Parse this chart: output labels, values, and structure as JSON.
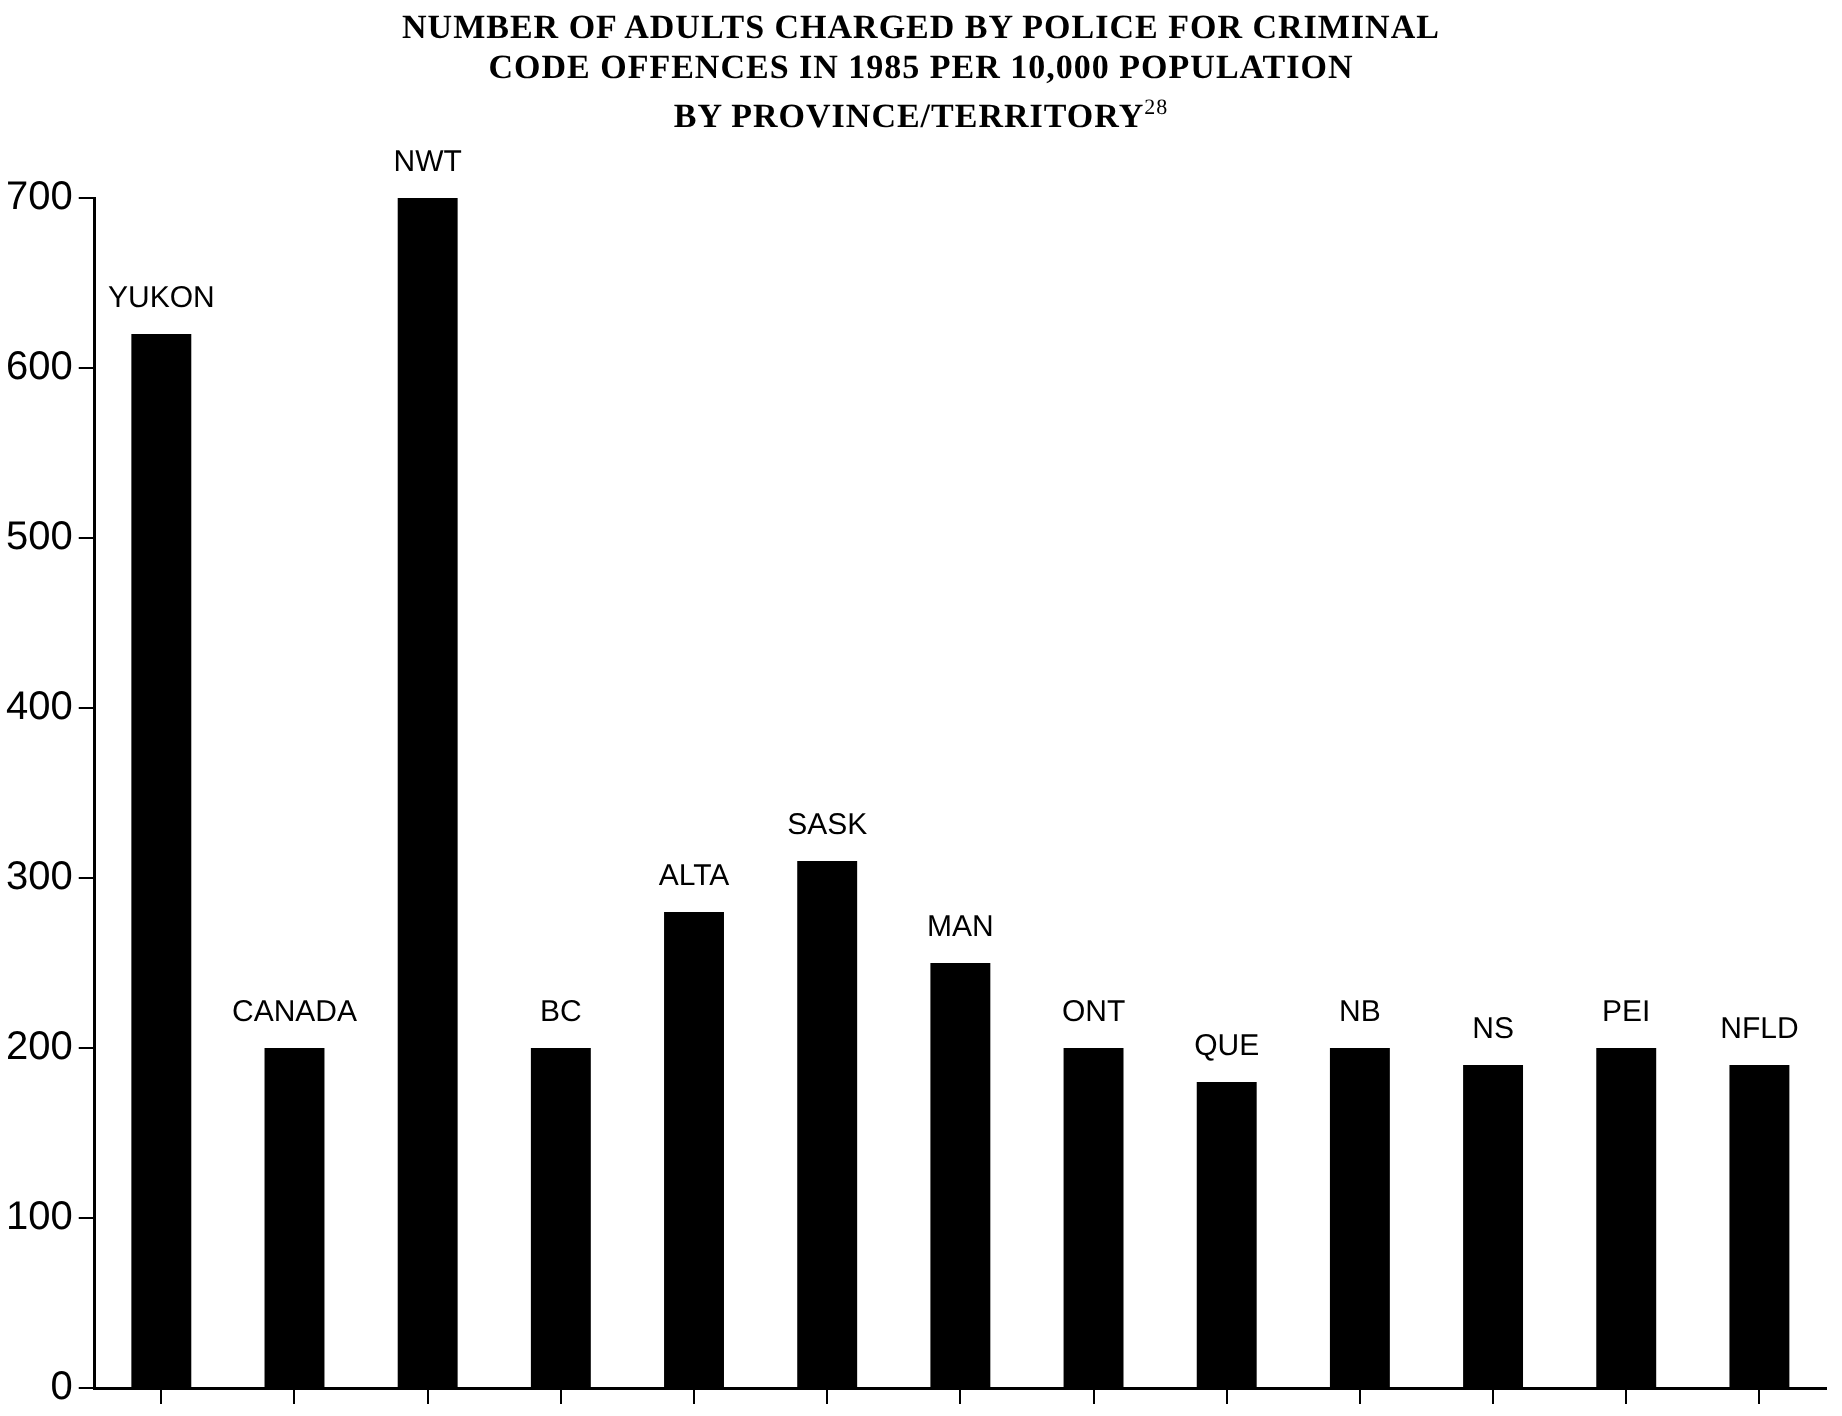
{
  "chart_data": {
    "type": "bar",
    "title": "NUMBER OF ADULTS CHARGED BY POLICE FOR CRIMINAL\nCODE OFFENCES IN 1985 PER 10,000 POPULATION\nBY PROVINCE/TERRITORY$^{28}$",
    "categories": [
      "YUKON",
      "CANADA",
      "NWT",
      "BC",
      "ALTA",
      "SASK",
      "MAN",
      "ONT",
      "QUE",
      "NB",
      "NS",
      "PEI",
      "NFLD"
    ],
    "values": [
      620,
      200,
      700,
      200,
      280,
      310,
      250,
      200,
      180,
      200,
      190,
      200,
      190
    ],
    "color": "#000000",
    "ylim": [
      0,
      700
    ],
    "yticks": [
      0,
      100,
      200,
      300,
      400,
      500,
      600,
      700
    ],
    "grid": false,
    "legend": false,
    "tick_labels": "y"
  }
}
